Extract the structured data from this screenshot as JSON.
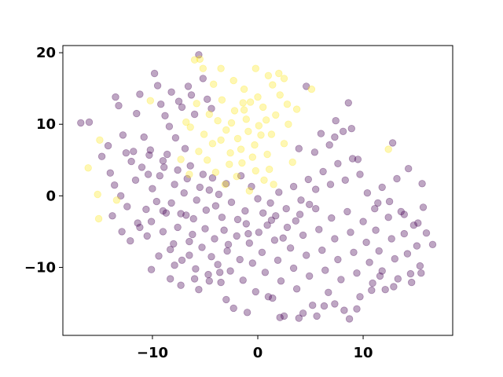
{
  "chart_data": {
    "type": "scatter",
    "title": "",
    "xlabel": "",
    "ylabel": "",
    "xlim": [
      -18.5,
      18.5
    ],
    "ylim": [
      -19.5,
      21.0
    ],
    "xticks": [
      -10,
      0,
      10
    ],
    "yticks": [
      -10,
      0,
      10,
      20
    ],
    "xtick_labels": [
      "−10",
      "0",
      "10"
    ],
    "ytick_labels": [
      "−10",
      "0",
      "10",
      "20"
    ],
    "grid": false,
    "legend": "none",
    "marker_alpha": 0.35,
    "colors": {
      "purple": "#440154",
      "yellow": "#fde725"
    },
    "series": [
      {
        "color": "#440154",
        "points": [
          [
            -16.8,
            10.2
          ],
          [
            -16.0,
            10.3
          ],
          [
            -14.2,
            7.0
          ],
          [
            -13.5,
            13.8
          ],
          [
            -13.2,
            12.6
          ],
          [
            -12.8,
            8.5
          ],
          [
            -12.5,
            6.0
          ],
          [
            -12.0,
            4.8
          ],
          [
            -11.8,
            6.2
          ],
          [
            -11.5,
            11.5
          ],
          [
            -11.2,
            14.2
          ],
          [
            -10.8,
            8.2
          ],
          [
            -10.2,
            6.4
          ],
          [
            -9.8,
            17.1
          ],
          [
            -9.5,
            15.4
          ],
          [
            -9.2,
            12.8
          ],
          [
            -8.8,
            11.2
          ],
          [
            -8.4,
            9.7
          ],
          [
            -8.2,
            14.5
          ],
          [
            -7.8,
            8.1
          ],
          [
            -7.5,
            13.2
          ],
          [
            -7.2,
            12.4
          ],
          [
            -6.9,
            6.6
          ],
          [
            -6.6,
            15.3
          ],
          [
            -6.3,
            14.1
          ],
          [
            -6.0,
            11.4
          ],
          [
            -5.6,
            19.7
          ],
          [
            -5.2,
            16.4
          ],
          [
            -4.8,
            13.5
          ],
          [
            -4.4,
            12.2
          ],
          [
            -14.8,
            5.5
          ],
          [
            -14.0,
            3.2
          ],
          [
            -13.6,
            1.5
          ],
          [
            -13.0,
            0.0
          ],
          [
            -12.4,
            -1.5
          ],
          [
            -11.6,
            2.2
          ],
          [
            -11.0,
            4.0
          ],
          [
            -10.4,
            3.0
          ],
          [
            -10.0,
            1.0
          ],
          [
            -9.6,
            -0.8
          ],
          [
            -9.3,
            2.8
          ],
          [
            -9.0,
            4.9
          ],
          [
            -8.6,
            5.8
          ],
          [
            -8.2,
            -1.0
          ],
          [
            -7.9,
            1.6
          ],
          [
            -7.6,
            3.6
          ],
          [
            -7.3,
            -2.5
          ],
          [
            -7.0,
            0.4
          ],
          [
            -6.7,
            2.4
          ],
          [
            -6.4,
            4.2
          ],
          [
            -6.1,
            -3.2
          ],
          [
            -5.8,
            -0.6
          ],
          [
            -5.5,
            1.2
          ],
          [
            -5.2,
            3.0
          ],
          [
            -4.9,
            -2.0
          ],
          [
            -4.6,
            0.8
          ],
          [
            -4.3,
            2.5
          ],
          [
            -4.0,
            -1.4
          ],
          [
            -3.7,
            0.2
          ],
          [
            -3.4,
            -3.0
          ],
          [
            -13.8,
            -2.8
          ],
          [
            -12.1,
            -6.3
          ],
          [
            -11.4,
            -3.8
          ],
          [
            -10.6,
            -1.9
          ],
          [
            -10.1,
            -3.6
          ],
          [
            -9.4,
            -8.4
          ],
          [
            -9.0,
            -5.0
          ],
          [
            -8.7,
            -2.4
          ],
          [
            -8.3,
            -11.6
          ],
          [
            -8.0,
            -6.7
          ],
          [
            -7.6,
            -4.4
          ],
          [
            -7.2,
            -9.0
          ],
          [
            -6.8,
            -2.7
          ],
          [
            -6.5,
            -8.3
          ],
          [
            -6.2,
            -5.4
          ],
          [
            -5.9,
            -10.2
          ],
          [
            -5.6,
            -13.1
          ],
          [
            -5.3,
            -7.2
          ],
          [
            -5.0,
            -4.6
          ],
          [
            -4.7,
            -11.0
          ],
          [
            -4.4,
            -8.5
          ],
          [
            -4.1,
            -6.0
          ],
          [
            -3.8,
            -9.6
          ],
          [
            -3.5,
            -12.1
          ],
          [
            -3.2,
            -4.8
          ],
          [
            -2.9,
            -7.7
          ],
          [
            -2.6,
            -10.5
          ],
          [
            -2.3,
            -15.7
          ],
          [
            -2.0,
            -5.6
          ],
          [
            -1.7,
            -8.9
          ],
          [
            -1.4,
            -11.8
          ],
          [
            -1.1,
            -3.9
          ],
          [
            -0.8,
            -6.6
          ],
          [
            -0.5,
            -9.4
          ],
          [
            -0.2,
            -13.4
          ],
          [
            0.1,
            -5.1
          ],
          [
            0.4,
            -7.9
          ],
          [
            0.7,
            -10.7
          ],
          [
            1.0,
            -14.1
          ],
          [
            1.3,
            -3.4
          ],
          [
            1.6,
            -6.2
          ],
          [
            1.9,
            -9.0
          ],
          [
            2.2,
            -11.9
          ],
          [
            2.5,
            -16.8
          ],
          [
            2.8,
            -4.4
          ],
          [
            3.1,
            -7.3
          ],
          [
            3.4,
            -10.1
          ],
          [
            3.7,
            -13.0
          ],
          [
            4.0,
            -2.6
          ],
          [
            4.3,
            -5.5
          ],
          [
            4.6,
            -8.3
          ],
          [
            4.9,
            -11.2
          ],
          [
            5.2,
            -15.3
          ],
          [
            5.5,
            -1.8
          ],
          [
            5.8,
            -4.7
          ],
          [
            6.1,
            -7.6
          ],
          [
            6.4,
            -10.4
          ],
          [
            6.7,
            -13.5
          ],
          [
            7.0,
            -3.1
          ],
          [
            7.3,
            -6.0
          ],
          [
            7.6,
            -8.9
          ],
          [
            7.9,
            -11.7
          ],
          [
            8.2,
            -16.0
          ],
          [
            8.5,
            -2.2
          ],
          [
            8.8,
            -5.1
          ],
          [
            9.1,
            -7.9
          ],
          [
            9.4,
            -10.8
          ],
          [
            9.7,
            -14.1
          ],
          [
            10.0,
            -3.6
          ],
          [
            10.3,
            -6.5
          ],
          [
            10.6,
            -9.3
          ],
          [
            10.9,
            -12.2
          ],
          [
            11.2,
            -4.8
          ],
          [
            11.5,
            -7.7
          ],
          [
            11.8,
            -10.5
          ],
          [
            12.1,
            -13.1
          ],
          [
            12.4,
            -3.0
          ],
          [
            12.7,
            -6.0
          ],
          [
            13.0,
            -8.8
          ],
          [
            13.3,
            -11.6
          ],
          [
            13.6,
            -2.2
          ],
          [
            13.9,
            -5.3
          ],
          [
            14.2,
            -8.1
          ],
          [
            14.5,
            -10.9
          ],
          [
            14.8,
            -4.1
          ],
          [
            15.1,
            -7.0
          ],
          [
            15.4,
            -9.8
          ],
          [
            15.7,
            -1.6
          ],
          [
            16.0,
            -5.2
          ],
          [
            16.6,
            -6.8
          ],
          [
            0.5,
            -2.4
          ],
          [
            1.2,
            -1.0
          ],
          [
            2.0,
            0.5
          ],
          [
            2.7,
            -1.8
          ],
          [
            3.4,
            1.3
          ],
          [
            4.1,
            -0.6
          ],
          [
            4.8,
            2.3
          ],
          [
            5.5,
            0.9
          ],
          [
            6.2,
            3.4
          ],
          [
            6.9,
            1.6
          ],
          [
            7.6,
            4.5
          ],
          [
            8.3,
            2.2
          ],
          [
            9.0,
            5.2
          ],
          [
            9.7,
            3.0
          ],
          [
            10.4,
            0.4
          ],
          [
            11.1,
            -1.8
          ],
          [
            11.8,
            1.2
          ],
          [
            12.5,
            -0.8
          ],
          [
            13.2,
            2.4
          ],
          [
            13.9,
            -2.6
          ],
          [
            14.3,
            3.8
          ],
          [
            15.2,
            -3.8
          ],
          [
            15.6,
            1.7
          ],
          [
            8.9,
            9.4
          ],
          [
            7.4,
            10.5
          ],
          [
            11.4,
            -1.0
          ],
          [
            9.5,
            5.1
          ],
          [
            12.8,
            7.4
          ],
          [
            4.6,
            15.3
          ],
          [
            8.6,
            13.0
          ],
          [
            6.0,
            8.7
          ],
          [
            5.4,
            6.1
          ],
          [
            6.8,
            7.1
          ],
          [
            3.9,
            6.6
          ],
          [
            7.3,
            8.2
          ],
          [
            8.1,
            9.0
          ],
          [
            -1.6,
            2.8
          ],
          [
            -2.5,
            -0.9
          ],
          [
            -1.2,
            -2.1
          ],
          [
            0.0,
            -0.4
          ],
          [
            -3.0,
            1.7
          ],
          [
            -0.6,
            1.3
          ],
          [
            1.7,
            -2.8
          ],
          [
            -2.8,
            -6.8
          ],
          [
            -1.9,
            -3.3
          ],
          [
            -0.9,
            -5.3
          ],
          [
            0.9,
            -4.1
          ],
          [
            2.4,
            -5.9
          ],
          [
            3.6,
            -3.5
          ],
          [
            4.9,
            -1.2
          ],
          [
            -7.3,
            -12.5
          ],
          [
            -6.0,
            -11.6
          ],
          [
            -3.0,
            -14.5
          ],
          [
            -1.0,
            -16.3
          ],
          [
            1.4,
            -14.3
          ],
          [
            3.9,
            -17.1
          ],
          [
            5.6,
            -16.8
          ],
          [
            7.3,
            -15.1
          ],
          [
            9.4,
            -15.8
          ],
          [
            10.8,
            -13.2
          ],
          [
            11.6,
            -11.2
          ],
          [
            12.9,
            -12.7
          ],
          [
            14.6,
            -12.1
          ],
          [
            15.5,
            -10.8
          ],
          [
            2.1,
            -17.0
          ],
          [
            4.3,
            -16.4
          ],
          [
            6.3,
            -15.4
          ],
          [
            8.7,
            -17.2
          ],
          [
            -9.0,
            -2.1
          ],
          [
            -11.2,
            -4.4
          ],
          [
            -12.9,
            -5.0
          ],
          [
            -10.5,
            -5.6
          ],
          [
            -8.3,
            -7.5
          ],
          [
            -10.1,
            -10.3
          ],
          [
            -7.9,
            -9.7
          ],
          [
            -4.6,
            -11.9
          ],
          [
            -3.6,
            -10.7
          ],
          [
            -6.5,
            -6.4
          ],
          [
            -8.9,
            4.0
          ],
          [
            -10.3,
            5.7
          ]
        ]
      },
      {
        "color": "#fde725",
        "points": [
          [
            -16.1,
            3.9
          ],
          [
            -15.0,
            7.8
          ],
          [
            -15.2,
            0.2
          ],
          [
            -13.4,
            -0.6
          ],
          [
            -15.1,
            -3.2
          ],
          [
            -10.2,
            13.3
          ],
          [
            -6.0,
            19.0
          ],
          [
            -5.5,
            19.1
          ],
          [
            -4.2,
            15.6
          ],
          [
            -3.5,
            17.8
          ],
          [
            -2.3,
            16.1
          ],
          [
            -1.3,
            14.9
          ],
          [
            -0.2,
            17.8
          ],
          [
            1.4,
            15.5
          ],
          [
            2.0,
            17.1
          ],
          [
            2.5,
            16.4
          ],
          [
            3.7,
            12.1
          ],
          [
            5.1,
            14.9
          ],
          [
            12.4,
            6.5
          ],
          [
            -7.3,
            5.1
          ],
          [
            -6.4,
            9.6
          ],
          [
            -5.8,
            12.9
          ],
          [
            -5.1,
            8.6
          ],
          [
            -4.6,
            11.4
          ],
          [
            -4.3,
            7.3
          ],
          [
            -3.8,
            10.5
          ],
          [
            -3.4,
            13.4
          ],
          [
            -3.0,
            9.2
          ],
          [
            -2.6,
            6.0
          ],
          [
            -2.2,
            11.9
          ],
          [
            -1.9,
            8.0
          ],
          [
            -1.5,
            4.6
          ],
          [
            -1.1,
            10.7
          ],
          [
            -0.7,
            13.1
          ],
          [
            -0.3,
            7.1
          ],
          [
            0.1,
            9.8
          ],
          [
            0.5,
            12.4
          ],
          [
            0.9,
            5.8
          ],
          [
            1.3,
            8.6
          ],
          [
            1.7,
            11.3
          ],
          [
            2.1,
            14.1
          ],
          [
            2.5,
            7.3
          ],
          [
            2.9,
            10.0
          ],
          [
            3.3,
            4.7
          ],
          [
            -5.6,
            6.2
          ],
          [
            -4.0,
            3.3
          ],
          [
            -3.1,
            1.6
          ],
          [
            -2.0,
            2.7
          ],
          [
            -0.8,
            0.7
          ],
          [
            -0.2,
            3.5
          ],
          [
            0.6,
            2.2
          ],
          [
            1.5,
            1.6
          ],
          [
            -2.7,
            4.4
          ],
          [
            -1.6,
            6.5
          ],
          [
            -0.5,
            5.4
          ],
          [
            -3.5,
            7.8
          ],
          [
            -4.8,
            5.0
          ],
          [
            -6.5,
            3.0
          ],
          [
            0.0,
            13.8
          ],
          [
            1.0,
            16.8
          ],
          [
            -1.4,
            13.0
          ],
          [
            2.8,
            12.8
          ],
          [
            -6.8,
            10.3
          ],
          [
            -5.2,
            17.8
          ],
          [
            -2.5,
            10.2
          ],
          [
            -0.9,
            9.0
          ],
          [
            0.3,
            8.5
          ],
          [
            1.1,
            3.7
          ],
          [
            -1.3,
            12.0
          ],
          [
            0.8,
            10.6
          ]
        ]
      }
    ]
  }
}
